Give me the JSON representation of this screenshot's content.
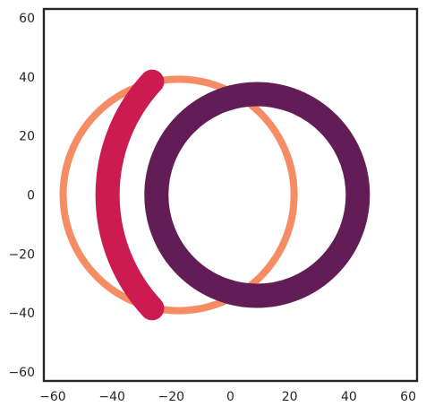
{
  "chart_data": {
    "type": "line",
    "title": "",
    "xlabel": "",
    "ylabel": "",
    "xlim": [
      -63,
      63
    ],
    "ylim": [
      -63,
      63
    ],
    "xticks": [
      -60,
      -40,
      -20,
      0,
      20,
      40,
      60
    ],
    "yticks": [
      -60,
      -40,
      -20,
      0,
      20,
      40,
      60
    ],
    "xtick_labels": [
      "−60",
      "−40",
      "−20",
      "0",
      "20",
      "40",
      "60"
    ],
    "ytick_labels": [
      "−60",
      "−40",
      "−20",
      "0",
      "20",
      "40",
      "60"
    ],
    "grid": false,
    "legend": false,
    "aspect": "equal",
    "series": [
      {
        "shape": "circle",
        "center": [
          -17.5,
          0
        ],
        "radius": 39,
        "color": "#f68c63",
        "line_width_rel": "thin"
      },
      {
        "shape": "circle",
        "center": [
          9,
          0
        ],
        "radius": 34,
        "color": "#621d56",
        "line_width_rel": "thick"
      },
      {
        "shape": "arc",
        "center": [
          14.5,
          0
        ],
        "radius": 56,
        "angle_start_deg": 137,
        "angle_end_deg": 223,
        "color": "#cb1b51",
        "line_width_rel": "thick",
        "linecap": "round"
      }
    ]
  }
}
